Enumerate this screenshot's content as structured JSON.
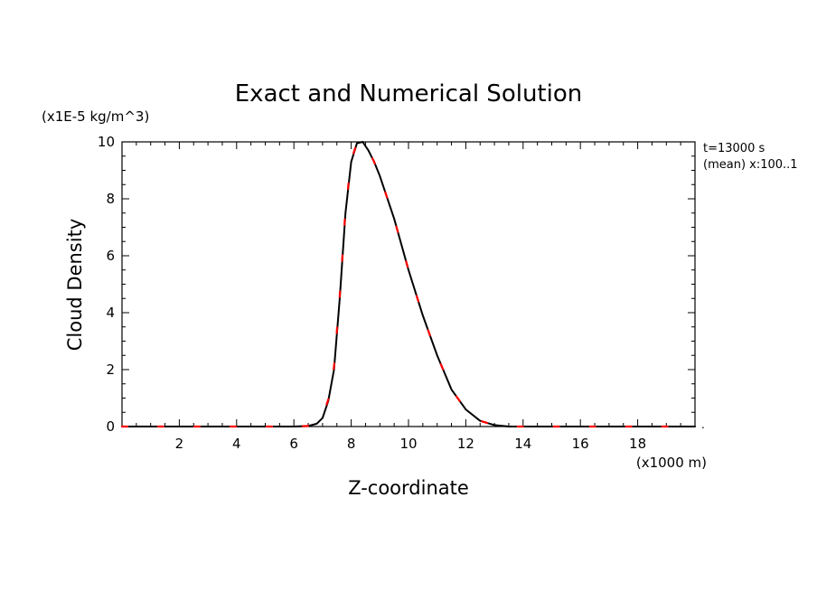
{
  "chart_data": {
    "type": "line",
    "title": "Exact and Numerical Solution",
    "xlabel": "Z-coordinate",
    "ylabel": "Cloud Density",
    "x_unit": "(x1000 m)",
    "y_unit": "(x1E-5 kg/m^3)",
    "xlim": [
      0,
      20
    ],
    "ylim": [
      0,
      10
    ],
    "x_ticks": [
      2,
      4,
      6,
      8,
      10,
      12,
      14,
      16,
      18
    ],
    "y_ticks": [
      0,
      2,
      4,
      6,
      8,
      10
    ],
    "annotations": [
      "t=13000 s",
      "(mean) x:100..1"
    ],
    "grid": false,
    "series": [
      {
        "name": "",
        "color": "#000000",
        "style": "solid",
        "x": [
          0,
          1,
          2,
          3,
          4,
          5,
          6,
          6.5,
          6.8,
          7.0,
          7.2,
          7.4,
          7.6,
          7.8,
          8.0,
          8.2,
          8.4,
          8.6,
          8.8,
          9.0,
          9.5,
          10.0,
          10.5,
          11.0,
          11.5,
          12.0,
          12.5,
          13.0,
          13.5,
          14,
          16,
          18,
          20
        ],
        "y": [
          0,
          0,
          0,
          0,
          0,
          0,
          0,
          0.02,
          0.1,
          0.3,
          0.9,
          2.0,
          4.5,
          7.5,
          9.3,
          9.95,
          10.0,
          9.7,
          9.3,
          8.8,
          7.3,
          5.5,
          3.9,
          2.5,
          1.3,
          0.6,
          0.2,
          0.05,
          0,
          0,
          0,
          0,
          0
        ]
      },
      {
        "name": "",
        "color": "#ff0000",
        "style": "dashed",
        "x": [
          0,
          1,
          2,
          3,
          4,
          5,
          6,
          6.5,
          6.8,
          7.0,
          7.2,
          7.4,
          7.6,
          7.8,
          8.0,
          8.2,
          8.4,
          8.6,
          8.8,
          9.0,
          9.5,
          10.0,
          10.5,
          11.0,
          11.5,
          12.0,
          12.5,
          13.0,
          13.5,
          14,
          16,
          18,
          20
        ],
        "y": [
          0,
          0,
          0,
          0,
          0,
          0,
          0,
          0.02,
          0.12,
          0.35,
          0.95,
          2.1,
          4.6,
          7.6,
          9.35,
          9.97,
          10.0,
          9.7,
          9.3,
          8.8,
          7.3,
          5.5,
          3.9,
          2.5,
          1.3,
          0.6,
          0.2,
          0.05,
          0,
          0,
          0,
          0,
          0
        ]
      }
    ]
  }
}
